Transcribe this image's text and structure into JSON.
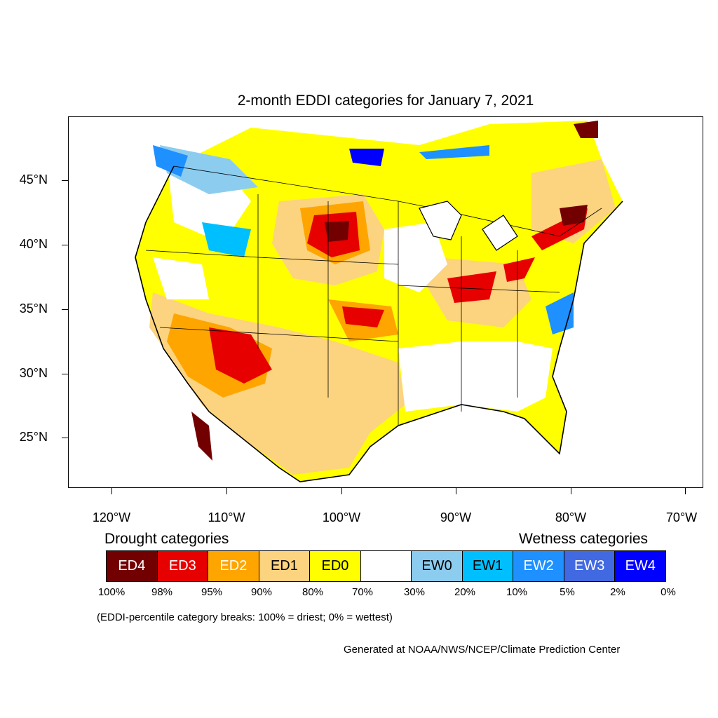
{
  "title": "2-month EDDI categories for January 7, 2021",
  "axes": {
    "y_ticks": [
      "45°N",
      "40°N",
      "35°N",
      "30°N",
      "25°N"
    ],
    "x_ticks": [
      "120°W",
      "110°W",
      "100°W",
      "90°W",
      "80°W",
      "70°W"
    ]
  },
  "legend": {
    "drought_heading": "Drought categories",
    "wetness_heading": "Wetness categories",
    "categories": [
      {
        "label": "ED4",
        "color": "#730000"
      },
      {
        "label": "ED3",
        "color": "#e60000"
      },
      {
        "label": "ED2",
        "color": "#ffa500"
      },
      {
        "label": "ED1",
        "color": "#fcd37f"
      },
      {
        "label": "ED0",
        "color": "#ffff00"
      },
      {
        "label": "",
        "color": "#ffffff"
      },
      {
        "label": "EW0",
        "color": "#8ccdef"
      },
      {
        "label": "EW1",
        "color": "#00bfff"
      },
      {
        "label": "EW2",
        "color": "#1e90ff"
      },
      {
        "label": "EW3",
        "color": "#4169e1"
      },
      {
        "label": "EW4",
        "color": "#0000ff"
      }
    ],
    "percent_breaks": [
      "100%",
      "98%",
      "95%",
      "90%",
      "80%",
      "70%",
      "30%",
      "20%",
      "10%",
      "5%",
      "2%",
      "0%"
    ],
    "note": "(EDDI-percentile category breaks: 100% = driest; 0% = wettest)"
  },
  "credit": "Generated at NOAA/NWS/NCEP/Climate Prediction Center"
}
